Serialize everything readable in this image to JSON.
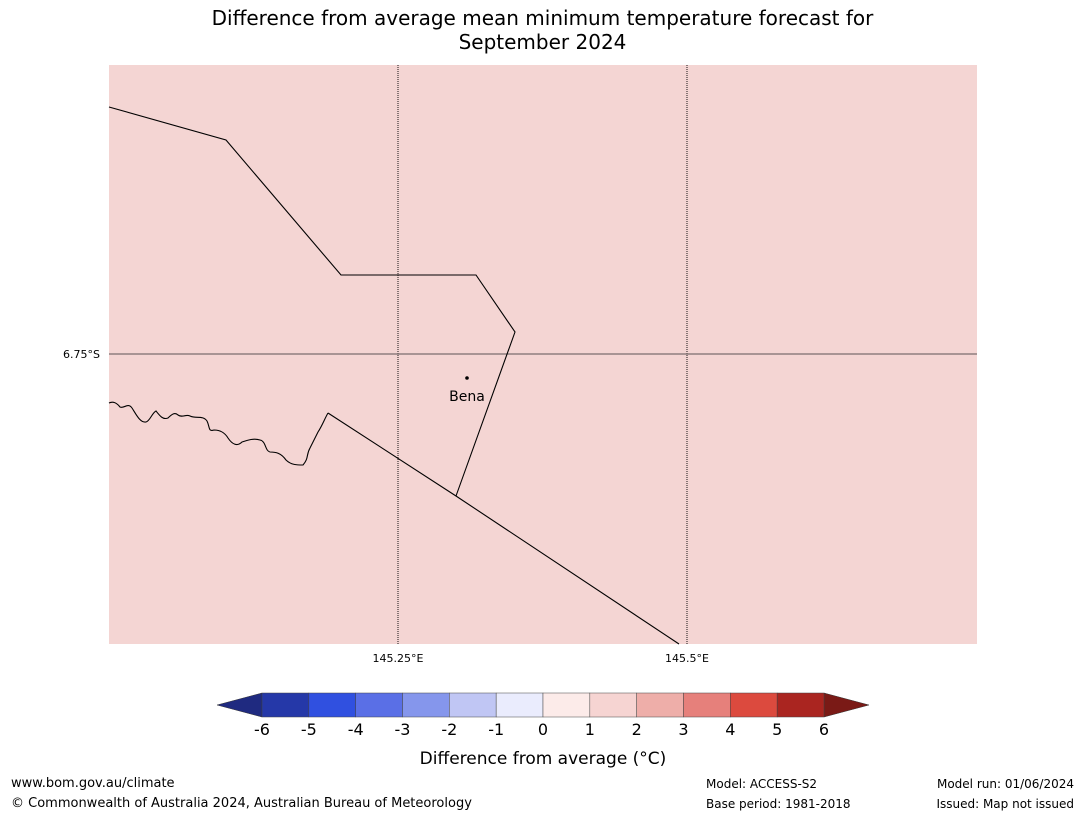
{
  "title_line1": "Difference from average mean minimum temperature forecast for",
  "title_line2": "September 2024",
  "map": {
    "background_color": "#f4d5d3",
    "border_color": "#000000",
    "gridline_color": "#000000",
    "latitudes": [
      {
        "label": "6.75°S"
      }
    ],
    "longitudes": [
      {
        "label": "145.25°E"
      },
      {
        "label": "145.5°E"
      }
    ],
    "places": [
      {
        "name": "Bena"
      }
    ]
  },
  "colorbar": {
    "label": "Difference from average (°C)",
    "ticks": [
      "-6",
      "-5",
      "-4",
      "-3",
      "-2",
      "-1",
      "0",
      "1",
      "2",
      "3",
      "4",
      "5",
      "6"
    ],
    "under_color": "#1f2a80",
    "over_color": "#7a1a16",
    "colors": [
      "#2538a8",
      "#3050e0",
      "#5a6fe6",
      "#8596ec",
      "#c0c6f4",
      "#eaecfd",
      "#fcebe9",
      "#f6d4d2",
      "#eeaea9",
      "#e6807b",
      "#dc4a3e",
      "#aa2520"
    ]
  },
  "footer": {
    "website": "www.bom.gov.au/climate",
    "copyright": "© Commonwealth of Australia 2024, Australian Bureau of Meteorology",
    "model": "Model: ACCESS-S2",
    "base_period": "Base period: 1981-2018",
    "model_run": "Model run: 01/06/2024",
    "issued": "Issued: Map not issued"
  }
}
